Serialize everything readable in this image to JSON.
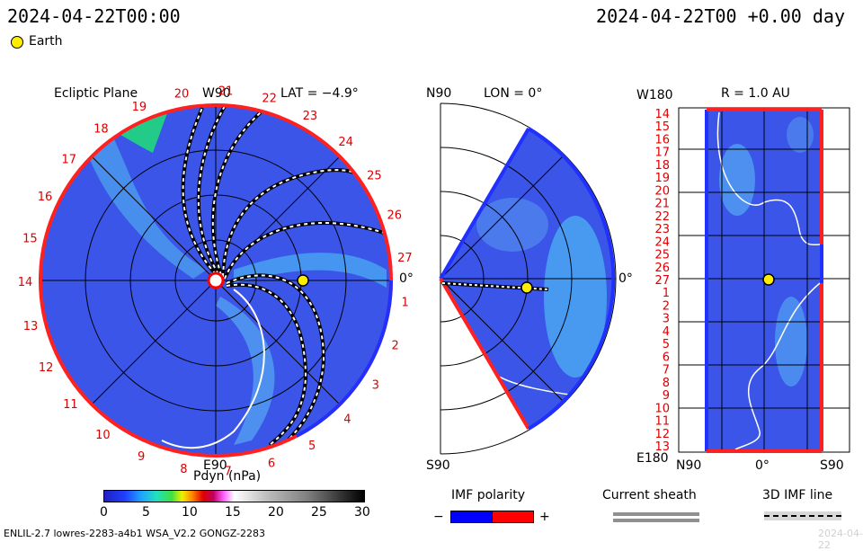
{
  "header": {
    "left_time": "2024-04-22T00:00",
    "right_time": "2024-04-22T00 +0.00 day"
  },
  "legend": {
    "earth_label": "Earth",
    "earth_color": "#ffee00"
  },
  "ecliptic": {
    "title": "Ecliptic Plane",
    "top_label": "W90",
    "lat_label": "LAT = −4.9°",
    "right_label": "0°",
    "bottom_label": "E90",
    "sector_numbers": [
      "1",
      "2",
      "3",
      "4",
      "5",
      "6",
      "7",
      "8",
      "9",
      "10",
      "11",
      "12",
      "13",
      "14",
      "15",
      "16",
      "17",
      "18",
      "19",
      "20",
      "21",
      "22",
      "23",
      "24",
      "25",
      "26",
      "27"
    ]
  },
  "meridional": {
    "top_label": "N90",
    "lon_label": "LON = 0°",
    "right_label": "0°",
    "bottom_label": "S90"
  },
  "radial": {
    "top_left_label": "W180",
    "r_label": "R = 1.0 AU",
    "bottom_left_label": "E180",
    "x_labels": [
      "N90",
      "0°",
      "S90"
    ],
    "y_labels": [
      "14",
      "15",
      "16",
      "17",
      "18",
      "19",
      "20",
      "21",
      "22",
      "23",
      "24",
      "25",
      "26",
      "27",
      "1",
      "2",
      "3",
      "4",
      "5",
      "6",
      "7",
      "8",
      "9",
      "10",
      "11",
      "12",
      "13"
    ]
  },
  "colorbar": {
    "title": "Pdyn (nPa)",
    "ticks": [
      "0",
      "5",
      "10",
      "15",
      "20",
      "25",
      "30"
    ],
    "min": 0,
    "max": 30
  },
  "imf": {
    "title": "IMF polarity",
    "minus": "−",
    "plus": "+",
    "neg_color": "#0000ff",
    "pos_color": "#ff0000"
  },
  "sheath": {
    "title": "Current sheath"
  },
  "imfline": {
    "title": "3D IMF line"
  },
  "footer": {
    "left": "ENLIL-2.7 lowres-2283-a4b1 WSA_V2.2 GONGZ-2283",
    "right": "2024-04-22"
  }
}
